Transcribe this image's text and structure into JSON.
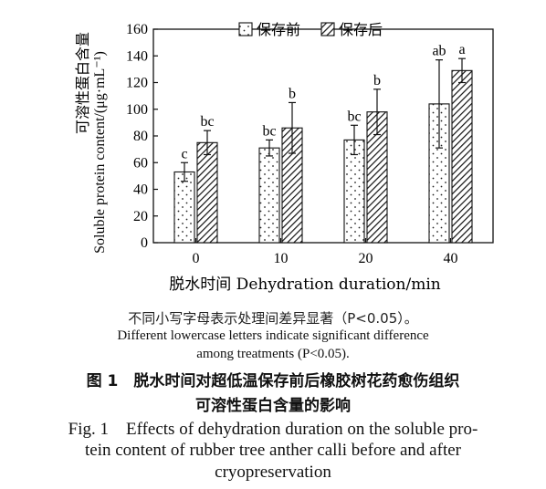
{
  "chart_data": {
    "type": "bar",
    "title": "",
    "xlabel": "脱水时间 Dehydration duration/min",
    "ylabel_cn": "可溶性蛋白含量",
    "ylabel_en": "Soluble protein content/(μg·mL⁻¹)",
    "categories": [
      "0",
      "10",
      "20",
      "40"
    ],
    "ylim": [
      0,
      160
    ],
    "yticks": [
      "0",
      "20",
      "40",
      "60",
      "80",
      "100",
      "120",
      "140",
      "160"
    ],
    "legend_position": "top",
    "series": [
      {
        "name": "保存前",
        "pattern": "dots",
        "values": [
          53,
          71,
          77,
          104
        ],
        "errors": [
          7,
          6,
          11,
          33
        ],
        "letters": [
          "c",
          "bc",
          "bc",
          "ab"
        ]
      },
      {
        "name": "保存后",
        "pattern": "hatch",
        "values": [
          75,
          86,
          98,
          129
        ],
        "errors": [
          9,
          19,
          17,
          9
        ],
        "letters": [
          "bc",
          "b",
          "b",
          "a"
        ]
      }
    ]
  },
  "notes": {
    "cn": "不同小写字母表示处理间差异显著（P<0.05）。",
    "en_line1": "Different lowercase letters indicate significant difference",
    "en_line2": "among treatments (P<0.05)."
  },
  "caption": {
    "cn_line1": "图 1　脱水时间对超低温保存前后橡胶树花药愈伤组织",
    "cn_line2": "可溶性蛋白含量的影响",
    "en_line1": "Fig. 1　Effects of dehydration duration on the soluble pro-",
    "en_line2": "tein content of rubber tree anther calli before and after",
    "en_line3": "cryopreservation"
  }
}
